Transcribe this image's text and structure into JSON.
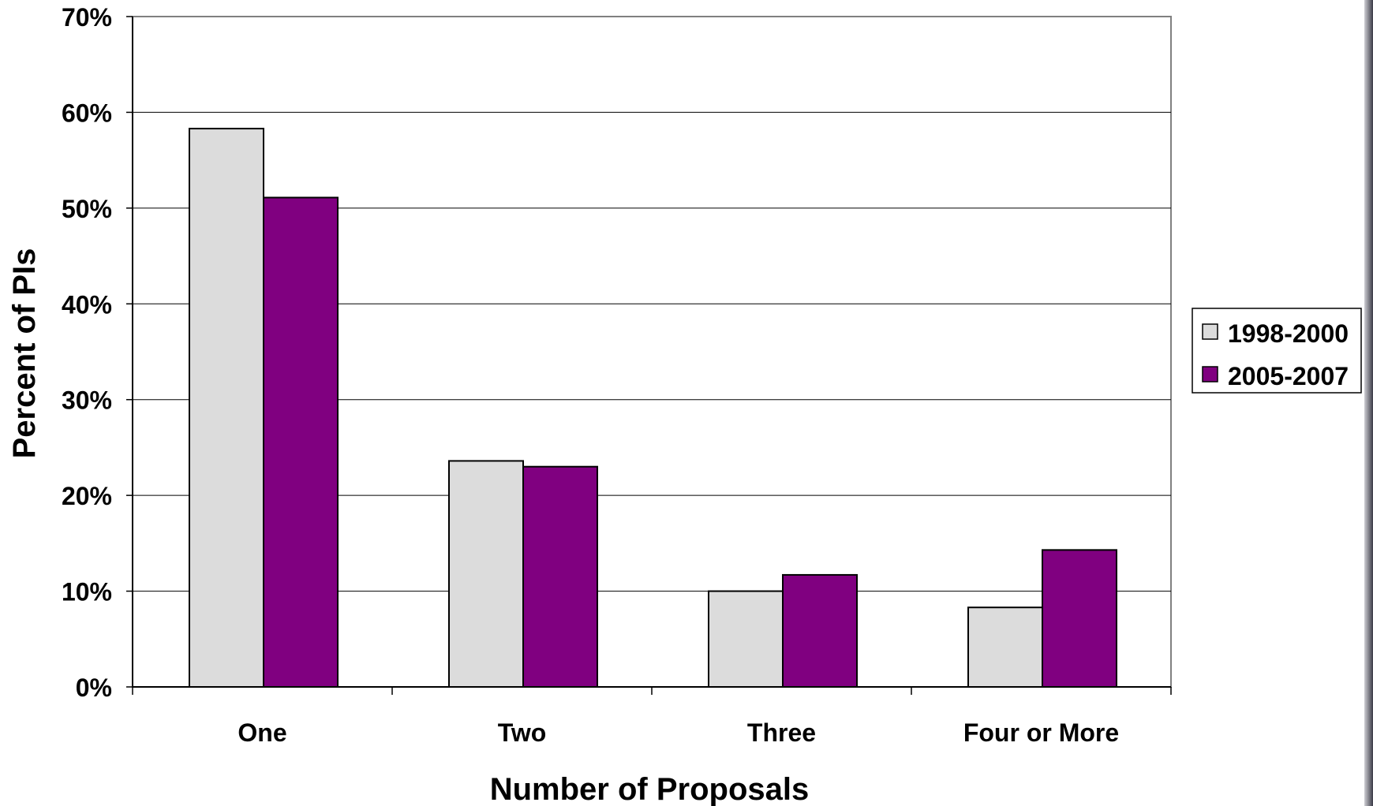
{
  "chart_data": {
    "type": "bar",
    "categories": [
      "One",
      "Two",
      "Three",
      "Four or More"
    ],
    "series": [
      {
        "name": "1998-2000",
        "values": [
          58.3,
          23.6,
          10.0,
          8.3
        ],
        "color": "#dcdcdc"
      },
      {
        "name": "2005-2007",
        "values": [
          51.1,
          23.0,
          11.7,
          14.3
        ],
        "color": "#800080"
      }
    ],
    "xlabel": "Number of Proposals",
    "ylabel": "Percent of PIs",
    "ylim": [
      0,
      70
    ],
    "yticks": [
      0,
      10,
      20,
      30,
      40,
      50,
      60,
      70
    ],
    "ytick_labels": [
      "0%",
      "10%",
      "20%",
      "30%",
      "40%",
      "50%",
      "60%",
      "70%"
    ],
    "grid": true,
    "legend_position": "right"
  }
}
